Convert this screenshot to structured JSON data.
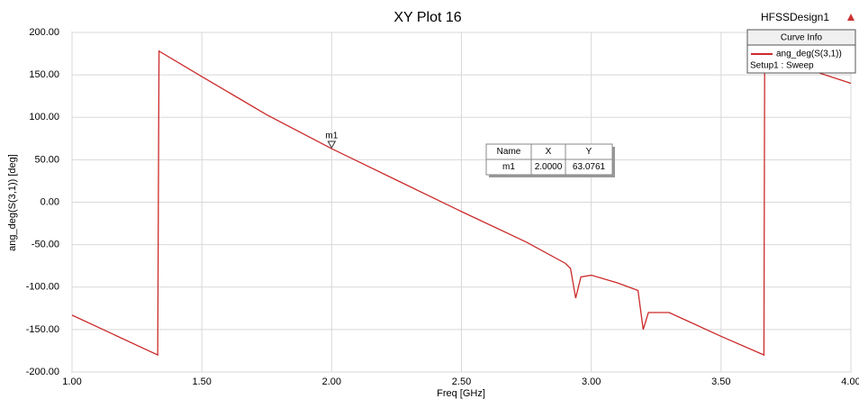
{
  "chart_data": {
    "type": "line",
    "title": "XY Plot 16",
    "design_name": "HFSSDesign1",
    "x_label": "Freq [GHz]",
    "y_label": "ang_deg(S(3,1)) [deg]",
    "x": [
      1.0,
      1.33,
      1.335,
      1.5,
      1.75,
      2.0,
      2.25,
      2.5,
      2.75,
      2.9,
      2.92,
      2.94,
      2.96,
      3.0,
      3.1,
      3.18,
      3.2,
      3.22,
      3.3,
      3.5,
      3.665,
      3.668,
      3.8,
      4.0
    ],
    "series": [
      {
        "name": "ang_deg(S(3,1))",
        "color": "#cc2a2a",
        "values": [
          -133,
          -180,
          178,
          148,
          103,
          63.0761,
          26,
          -11,
          -47,
          -72,
          -78,
          -113,
          -88,
          -86,
          -95,
          -104,
          -150,
          -130,
          -130,
          -158,
          -180,
          178,
          160,
          140
        ]
      }
    ],
    "legend_title": "Curve Info",
    "legend_subtitle": "Setup1 : Sweep",
    "legend_position": "upper right",
    "xlim": [
      1.0,
      4.0
    ],
    "ylim": [
      -200,
      200
    ],
    "xticks": [
      {
        "value": 1.0,
        "label": "1.00"
      },
      {
        "value": 1.5,
        "label": "1.50"
      },
      {
        "value": 2.0,
        "label": "2.00"
      },
      {
        "value": 2.5,
        "label": "2.50"
      },
      {
        "value": 3.0,
        "label": "3.00"
      },
      {
        "value": 3.5,
        "label": "3.50"
      },
      {
        "value": 4.0,
        "label": "4.00"
      }
    ],
    "yticks": [
      {
        "value": -200,
        "label": "-200.00"
      },
      {
        "value": -150,
        "label": "-150.00"
      },
      {
        "value": -100,
        "label": "-100.00"
      },
      {
        "value": -50,
        "label": "-50.00"
      },
      {
        "value": 0,
        "label": "0.00"
      },
      {
        "value": 50,
        "label": "50.00"
      },
      {
        "value": 100,
        "label": "100.00"
      },
      {
        "value": 150,
        "label": "150.00"
      },
      {
        "value": 200,
        "label": "200.00"
      }
    ],
    "grid": true,
    "markers": [
      {
        "name": "m1",
        "x": 2.0,
        "y": 63.0761
      }
    ],
    "marker_table": {
      "header": [
        "Name",
        "X",
        "Y"
      ],
      "rows": [
        [
          "m1",
          "2.0000",
          "63.0761"
        ]
      ]
    }
  }
}
